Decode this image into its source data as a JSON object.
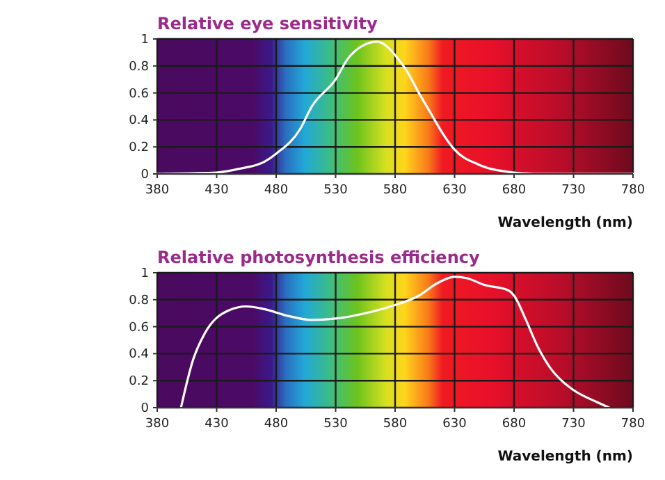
{
  "chart_data": [
    {
      "type": "line",
      "title": "Relative eye sensitivity",
      "xlabel": "Wavelength (nm)",
      "xlim": [
        380,
        780
      ],
      "xticks": [
        380,
        430,
        480,
        530,
        580,
        630,
        680,
        730,
        780
      ],
      "ylim": [
        0,
        1
      ],
      "yticks": [
        0,
        0.2,
        0.4,
        0.6,
        0.8,
        1
      ],
      "grid": true,
      "series": [
        {
          "color": "#ffffff",
          "x": [
            380,
            430,
            450,
            470,
            480,
            500,
            510,
            530,
            540,
            555,
            565,
            575,
            580,
            590,
            600,
            610,
            620,
            630,
            650,
            680,
            700,
            780
          ],
          "values": [
            0,
            0.01,
            0.04,
            0.09,
            0.15,
            0.33,
            0.5,
            0.7,
            0.85,
            0.96,
            0.98,
            0.93,
            0.88,
            0.76,
            0.6,
            0.45,
            0.3,
            0.18,
            0.07,
            0.01,
            0,
            0
          ]
        }
      ]
    },
    {
      "type": "line",
      "title": "Relative photosynthesis efficiency",
      "xlabel": "Wavelength (nm)",
      "xlim": [
        380,
        780
      ],
      "xticks": [
        380,
        430,
        480,
        530,
        580,
        630,
        680,
        730,
        780
      ],
      "ylim": [
        0,
        1
      ],
      "yticks": [
        0,
        0.2,
        0.4,
        0.6,
        0.8,
        1
      ],
      "grid": true,
      "series": [
        {
          "color": "#ffffff",
          "x": [
            400,
            410,
            420,
            440,
            455,
            470,
            490,
            510,
            530,
            560,
            580,
            600,
            615,
            630,
            640,
            655,
            675,
            680,
            690,
            700,
            710,
            720,
            730,
            750,
            760
          ],
          "values": [
            0,
            0.35,
            0.55,
            0.72,
            0.75,
            0.73,
            0.68,
            0.65,
            0.66,
            0.71,
            0.76,
            0.83,
            0.92,
            0.97,
            0.96,
            0.91,
            0.87,
            0.83,
            0.65,
            0.45,
            0.3,
            0.2,
            0.13,
            0.04,
            0
          ]
        }
      ]
    }
  ]
}
